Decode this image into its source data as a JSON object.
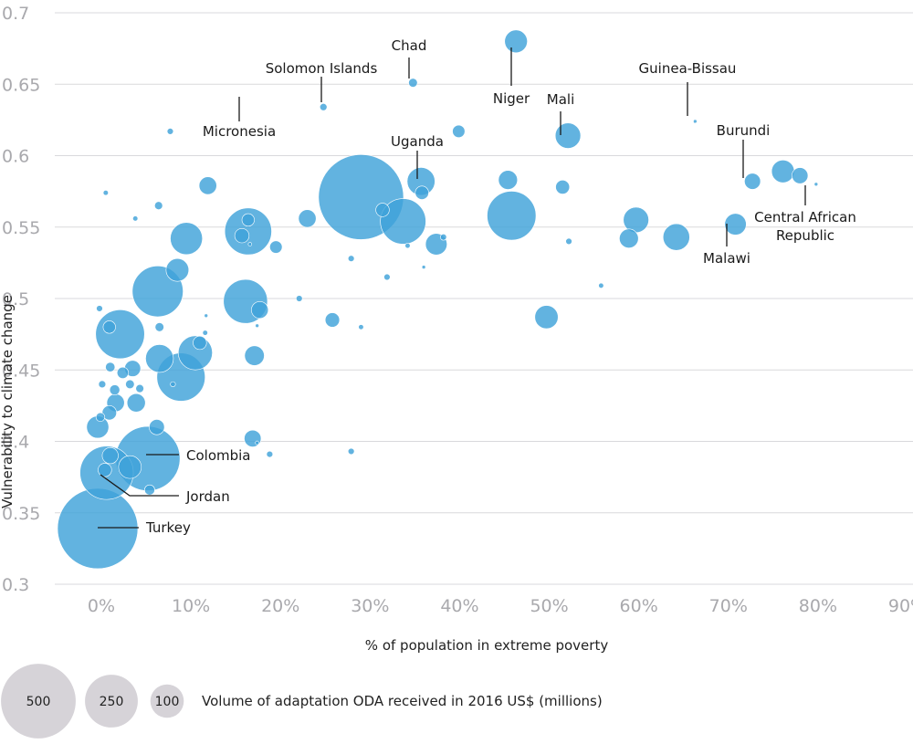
{
  "chart_data": {
    "type": "scatter",
    "subtype": "bubble",
    "title": "",
    "xlabel": "% of population in extreme poverty",
    "ylabel": "Vulnerability to climate change",
    "xlim": [
      0,
      90
    ],
    "ylim": [
      0.3,
      0.7
    ],
    "x_ticks": [
      "0%",
      "10%",
      "20%",
      "30%",
      "40%",
      "50%",
      "60%",
      "70%",
      "80%",
      "90%"
    ],
    "y_ticks": [
      "0.3",
      "0.35",
      "0.4",
      "0.45",
      "0.5",
      "0.55",
      "0.6",
      "0.65",
      "0.7"
    ],
    "grid": "horizontal",
    "bubble_color": "#3fa2d9",
    "points": [
      {
        "x": 0,
        "y": 0.339,
        "size": 500,
        "label": "Turkey"
      },
      {
        "x": 1,
        "y": 0.378,
        "size": 220,
        "label": "Jordan"
      },
      {
        "x": 5.6,
        "y": 0.388,
        "size": 320,
        "label": "Colombia"
      },
      {
        "x": 8.1,
        "y": 0.617,
        "size": 3,
        "label": "Micronesia"
      },
      {
        "x": 25.2,
        "y": 0.634,
        "size": 4,
        "label": "Solomon Islands"
      },
      {
        "x": 35.2,
        "y": 0.651,
        "size": 6,
        "label": "Chad"
      },
      {
        "x": 46.7,
        "y": 0.68,
        "size": 40,
        "label": "Niger"
      },
      {
        "x": 52.5,
        "y": 0.614,
        "size": 50,
        "label": "Mali"
      },
      {
        "x": 66.7,
        "y": 0.624,
        "size": 1,
        "label": "Guinea-Bissau"
      },
      {
        "x": 36.1,
        "y": 0.582,
        "size": 60,
        "label": "Uganda"
      },
      {
        "x": 73.1,
        "y": 0.582,
        "size": 20,
        "label": "Burundi"
      },
      {
        "x": 80.2,
        "y": 0.58,
        "size": 1,
        "label": "Central African Republic"
      },
      {
        "x": 71.2,
        "y": 0.552,
        "size": 36,
        "label": "Malawi"
      },
      {
        "x": 29.4,
        "y": 0.571,
        "size": 560
      },
      {
        "x": 34.1,
        "y": 0.554,
        "size": 160
      },
      {
        "x": 46.2,
        "y": 0.558,
        "size": 185
      },
      {
        "x": 16.8,
        "y": 0.547,
        "size": 170
      },
      {
        "x": 16.5,
        "y": 0.498,
        "size": 150
      },
      {
        "x": 6.7,
        "y": 0.505,
        "size": 200
      },
      {
        "x": 2.5,
        "y": 0.475,
        "size": 185
      },
      {
        "x": 9.9,
        "y": 0.542,
        "size": 80
      },
      {
        "x": 9.3,
        "y": 0.445,
        "size": 180
      },
      {
        "x": 10.9,
        "y": 0.462,
        "size": 90
      },
      {
        "x": 6.9,
        "y": 0.458,
        "size": 60
      },
      {
        "x": 8.9,
        "y": 0.52,
        "size": 40
      },
      {
        "x": 76.5,
        "y": 0.589,
        "size": 40
      },
      {
        "x": 78.4,
        "y": 0.586,
        "size": 20
      },
      {
        "x": 45.8,
        "y": 0.583,
        "size": 28
      },
      {
        "x": 51.9,
        "y": 0.578,
        "size": 15
      },
      {
        "x": 60.1,
        "y": 0.555,
        "size": 50
      },
      {
        "x": 59.3,
        "y": 0.542,
        "size": 28
      },
      {
        "x": 64.6,
        "y": 0.543,
        "size": 55
      },
      {
        "x": 50.1,
        "y": 0.487,
        "size": 42
      },
      {
        "x": 37.8,
        "y": 0.538,
        "size": 36
      },
      {
        "x": 23.4,
        "y": 0.556,
        "size": 24
      },
      {
        "x": 12.3,
        "y": 0.579,
        "size": 24
      },
      {
        "x": 17.5,
        "y": 0.46,
        "size": 30
      },
      {
        "x": 17.3,
        "y": 0.402,
        "size": 22
      },
      {
        "x": 26.2,
        "y": 0.485,
        "size": 16
      },
      {
        "x": 40.3,
        "y": 0.617,
        "size": 12
      },
      {
        "x": 36.2,
        "y": 0.574,
        "size": 14
      },
      {
        "x": 31.8,
        "y": 0.562,
        "size": 14
      },
      {
        "x": 18.1,
        "y": 0.492,
        "size": 22
      },
      {
        "x": 16.1,
        "y": 0.544,
        "size": 16
      },
      {
        "x": 16.8,
        "y": 0.555,
        "size": 12
      },
      {
        "x": 19.9,
        "y": 0.536,
        "size": 12
      },
      {
        "x": 6.6,
        "y": 0.41,
        "size": 18
      },
      {
        "x": 4.3,
        "y": 0.427,
        "size": 26
      },
      {
        "x": 3.9,
        "y": 0.451,
        "size": 20
      },
      {
        "x": 2,
        "y": 0.427,
        "size": 24
      },
      {
        "x": 1.3,
        "y": 0.42,
        "size": 16
      },
      {
        "x": 0,
        "y": 0.41,
        "size": 38
      },
      {
        "x": 0.8,
        "y": 0.38,
        "size": 14
      },
      {
        "x": 1.4,
        "y": 0.39,
        "size": 20
      },
      {
        "x": 3.6,
        "y": 0.382,
        "size": 40
      },
      {
        "x": 5.8,
        "y": 0.366,
        "size": 8
      },
      {
        "x": 11.4,
        "y": 0.469,
        "size": 14
      },
      {
        "x": 6.9,
        "y": 0.48,
        "size": 6
      },
      {
        "x": 1.3,
        "y": 0.48,
        "size": 12
      },
      {
        "x": 1.4,
        "y": 0.452,
        "size": 7
      },
      {
        "x": 2.8,
        "y": 0.448,
        "size": 10
      },
      {
        "x": 3.6,
        "y": 0.44,
        "size": 6
      },
      {
        "x": 1.9,
        "y": 0.436,
        "size": 8
      },
      {
        "x": 0.5,
        "y": 0.44,
        "size": 4
      },
      {
        "x": 4.7,
        "y": 0.437,
        "size": 5
      },
      {
        "x": 0.3,
        "y": 0.417,
        "size": 6
      },
      {
        "x": 6.8,
        "y": 0.565,
        "size": 5
      },
      {
        "x": 0.9,
        "y": 0.574,
        "size": 2
      },
      {
        "x": 4.2,
        "y": 0.556,
        "size": 2
      },
      {
        "x": 0.2,
        "y": 0.493,
        "size": 3
      },
      {
        "x": 12.1,
        "y": 0.488,
        "size": 1
      },
      {
        "x": 8.4,
        "y": 0.44,
        "size": 2
      },
      {
        "x": 12.0,
        "y": 0.476,
        "size": 2
      },
      {
        "x": 17.0,
        "y": 0.538,
        "size": 1
      },
      {
        "x": 17.8,
        "y": 0.481,
        "size": 1
      },
      {
        "x": 17.8,
        "y": 0.399,
        "size": 1
      },
      {
        "x": 19.2,
        "y": 0.391,
        "size": 3
      },
      {
        "x": 22.5,
        "y": 0.5,
        "size": 3
      },
      {
        "x": 28.3,
        "y": 0.528,
        "size": 3
      },
      {
        "x": 28.3,
        "y": 0.393,
        "size": 3
      },
      {
        "x": 29.4,
        "y": 0.48,
        "size": 2
      },
      {
        "x": 32.3,
        "y": 0.515,
        "size": 3
      },
      {
        "x": 34.6,
        "y": 0.537,
        "size": 2
      },
      {
        "x": 36.4,
        "y": 0.522,
        "size": 1
      },
      {
        "x": 38.6,
        "y": 0.543,
        "size": 3
      },
      {
        "x": 52.6,
        "y": 0.54,
        "size": 3
      },
      {
        "x": 56.2,
        "y": 0.509,
        "size": 2
      }
    ],
    "legend": {
      "title": "Volume of adaptation ODA received in 2016 US$ (millions)",
      "fill_color": "#d6d3d8",
      "items": [
        {
          "size": 500,
          "label": "500"
        },
        {
          "size": 250,
          "label": "250"
        },
        {
          "size": 100,
          "label": "100"
        }
      ]
    }
  }
}
